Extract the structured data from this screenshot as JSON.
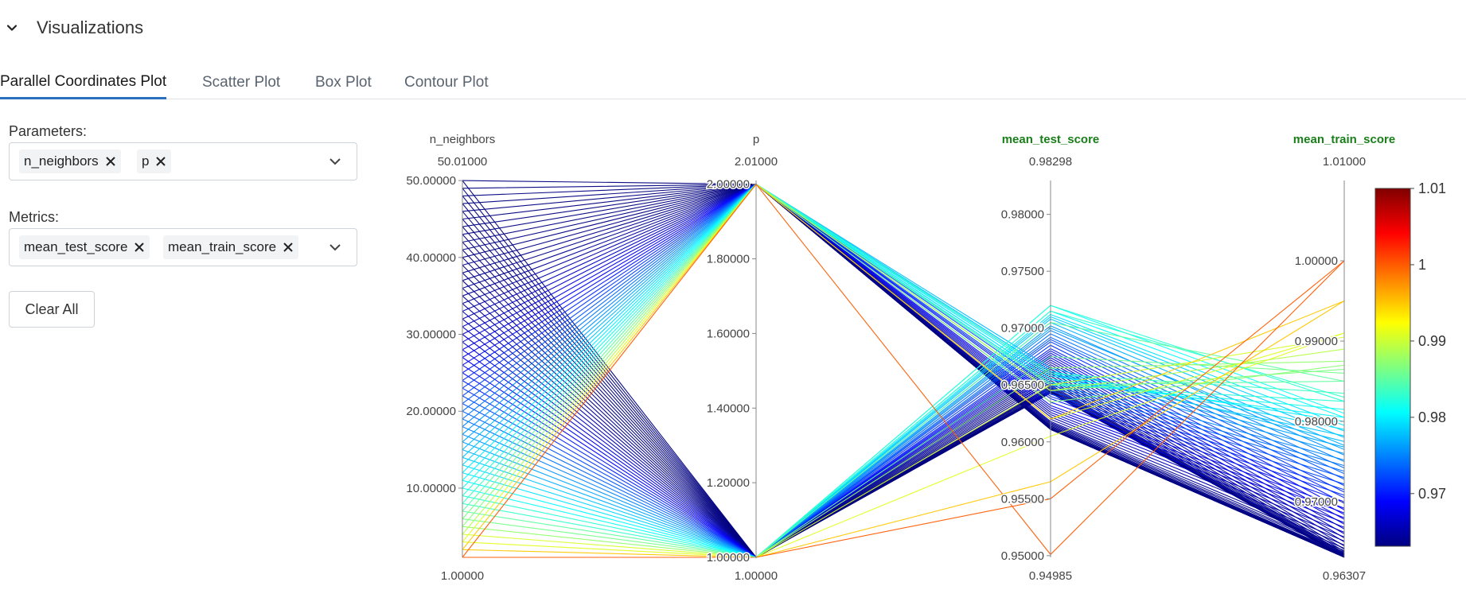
{
  "section": {
    "title": "Visualizations"
  },
  "tabs": [
    {
      "label": "Parallel Coordinates Plot",
      "active": true
    },
    {
      "label": "Scatter Plot",
      "active": false
    },
    {
      "label": "Box Plot",
      "active": false
    },
    {
      "label": "Contour Plot",
      "active": false
    }
  ],
  "parameters": {
    "label": "Parameters:",
    "chips": [
      "n_neighbors",
      "p"
    ]
  },
  "metrics": {
    "label": "Metrics:",
    "chips": [
      "mean_test_score",
      "mean_train_score"
    ]
  },
  "clear_all_label": "Clear All",
  "colors": {
    "accent": "#2a6fbd",
    "metric_label": "#1a7f1a"
  },
  "chart_data": {
    "type": "parallel_coordinates",
    "axes": [
      {
        "name": "n_neighbors",
        "min": 1.0,
        "max": 50.01,
        "min_label": "1.00000",
        "max_label": "50.01000",
        "ticks": [
          "10.00000",
          "20.00000",
          "30.00000",
          "40.00000",
          "50.00000"
        ],
        "tick_values": [
          10,
          20,
          30,
          40,
          50
        ],
        "is_metric": false
      },
      {
        "name": "p",
        "min": 1.0,
        "max": 2.01,
        "min_label": "1.00000",
        "max_label": "2.01000",
        "ticks": [
          "1.00000",
          "1.20000",
          "1.40000",
          "1.60000",
          "1.80000",
          "2.00000"
        ],
        "tick_values": [
          1.0,
          1.2,
          1.4,
          1.6,
          1.8,
          2.0
        ],
        "is_metric": false
      },
      {
        "name": "mean_test_score",
        "min": 0.94985,
        "max": 0.98298,
        "min_label": "0.94985",
        "max_label": "0.98298",
        "ticks": [
          "0.95000",
          "0.95500",
          "0.96000",
          "0.96500",
          "0.97000",
          "0.97500",
          "0.98000"
        ],
        "tick_values": [
          0.95,
          0.955,
          0.96,
          0.965,
          0.97,
          0.975,
          0.98
        ],
        "is_metric": true
      },
      {
        "name": "mean_train_score",
        "min": 0.96307,
        "max": 1.01,
        "min_label": "0.96307",
        "max_label": "1.01000",
        "ticks": [
          "0.97000",
          "0.98000",
          "0.99000",
          "1.00000"
        ],
        "tick_values": [
          0.97,
          0.98,
          0.99,
          1.0
        ],
        "is_metric": true
      }
    ],
    "colorbar": {
      "ticks": [
        "0.97",
        "0.98",
        "0.99",
        "1",
        "1.01"
      ],
      "tick_values": [
        0.97,
        0.98,
        0.99,
        1.0,
        1.01
      ],
      "min": 0.9631,
      "max": 1.01,
      "colorscale": "jet"
    },
    "lines": [
      [
        1,
        2,
        0.9501,
        1.0
      ],
      [
        1,
        1,
        0.955,
        1.0
      ],
      [
        2,
        2,
        0.962,
        0.995
      ],
      [
        2,
        1,
        0.9565,
        0.995
      ],
      [
        3,
        2,
        0.962,
        0.991
      ],
      [
        3,
        1,
        0.9605,
        0.991
      ],
      [
        4,
        2,
        0.9645,
        0.989
      ],
      [
        4,
        1,
        0.965,
        0.9905
      ],
      [
        5,
        2,
        0.9635,
        0.987
      ],
      [
        5,
        1,
        0.9665,
        0.9875
      ],
      [
        6,
        2,
        0.9645,
        0.9865
      ],
      [
        6,
        1,
        0.9675,
        0.986
      ],
      [
        7,
        2,
        0.965,
        0.985
      ],
      [
        7,
        1,
        0.9705,
        0.985
      ],
      [
        8,
        2,
        0.966,
        0.9835
      ],
      [
        8,
        1,
        0.9715,
        0.983
      ],
      [
        9,
        2,
        0.965,
        0.9825
      ],
      [
        9,
        1,
        0.972,
        0.9825
      ],
      [
        10,
        2,
        0.9652,
        0.9815
      ],
      [
        10,
        1,
        0.972,
        0.981
      ],
      [
        11,
        2,
        0.9655,
        0.9805
      ],
      [
        11,
        1,
        0.9715,
        0.9805
      ],
      [
        12,
        2,
        0.9658,
        0.98
      ],
      [
        12,
        1,
        0.9712,
        0.9795
      ],
      [
        13,
        2,
        0.9662,
        0.979
      ],
      [
        13,
        1,
        0.971,
        0.9788
      ],
      [
        14,
        2,
        0.966,
        0.9782
      ],
      [
        14,
        1,
        0.9708,
        0.978
      ],
      [
        15,
        2,
        0.9665,
        0.9775
      ],
      [
        15,
        1,
        0.9705,
        0.977
      ],
      [
        16,
        2,
        0.9662,
        0.9768
      ],
      [
        16,
        1,
        0.97,
        0.9765
      ],
      [
        17,
        2,
        0.966,
        0.976
      ],
      [
        17,
        1,
        0.9702,
        0.9758
      ],
      [
        18,
        2,
        0.9655,
        0.9752
      ],
      [
        18,
        1,
        0.9698,
        0.975
      ],
      [
        19,
        2,
        0.9652,
        0.9745
      ],
      [
        19,
        1,
        0.9695,
        0.9742
      ],
      [
        20,
        2,
        0.965,
        0.9738
      ],
      [
        20,
        1,
        0.9692,
        0.9735
      ],
      [
        21,
        2,
        0.9648,
        0.973
      ],
      [
        21,
        1,
        0.969,
        0.9728
      ],
      [
        22,
        2,
        0.9645,
        0.9722
      ],
      [
        22,
        1,
        0.9688,
        0.972
      ],
      [
        23,
        2,
        0.9642,
        0.9715
      ],
      [
        23,
        1,
        0.9685,
        0.9712
      ],
      [
        24,
        2,
        0.964,
        0.9708
      ],
      [
        24,
        1,
        0.9682,
        0.9705
      ],
      [
        25,
        2,
        0.9638,
        0.97
      ],
      [
        25,
        1,
        0.968,
        0.9698
      ],
      [
        26,
        2,
        0.9635,
        0.9692
      ],
      [
        26,
        1,
        0.9678,
        0.969
      ],
      [
        27,
        2,
        0.9632,
        0.9686
      ],
      [
        27,
        1,
        0.9676,
        0.9684
      ],
      [
        28,
        2,
        0.963,
        0.968
      ],
      [
        28,
        1,
        0.9674,
        0.9678
      ],
      [
        29,
        2,
        0.9628,
        0.9674
      ],
      [
        29,
        1,
        0.9672,
        0.9672
      ],
      [
        30,
        2,
        0.9626,
        0.9668
      ],
      [
        30,
        1,
        0.967,
        0.9666
      ],
      [
        31,
        2,
        0.9624,
        0.9662
      ],
      [
        31,
        1,
        0.9668,
        0.966
      ],
      [
        32,
        2,
        0.9622,
        0.9656
      ],
      [
        32,
        1,
        0.9666,
        0.9655
      ],
      [
        33,
        2,
        0.962,
        0.9651
      ],
      [
        33,
        1,
        0.9664,
        0.965
      ],
      [
        34,
        2,
        0.9618,
        0.9646
      ],
      [
        34,
        1,
        0.9662,
        0.9645
      ],
      [
        35,
        2,
        0.9617,
        0.9642
      ],
      [
        35,
        1,
        0.966,
        0.9641
      ],
      [
        36,
        2,
        0.9616,
        0.9639
      ],
      [
        36,
        1,
        0.9658,
        0.9638
      ],
      [
        37,
        2,
        0.9615,
        0.9637
      ],
      [
        37,
        1,
        0.9656,
        0.9636
      ],
      [
        38,
        2,
        0.9614,
        0.9635
      ],
      [
        38,
        1,
        0.9654,
        0.9635
      ],
      [
        39,
        2,
        0.9614,
        0.9634
      ],
      [
        39,
        1,
        0.9652,
        0.9634
      ],
      [
        40,
        2,
        0.9613,
        0.9633
      ],
      [
        40,
        1,
        0.965,
        0.9633
      ],
      [
        41,
        2,
        0.9613,
        0.9633
      ],
      [
        41,
        1,
        0.9649,
        0.9632
      ],
      [
        42,
        2,
        0.9612,
        0.9632
      ],
      [
        42,
        1,
        0.9648,
        0.9632
      ],
      [
        43,
        2,
        0.9612,
        0.9632
      ],
      [
        43,
        1,
        0.9647,
        0.9631
      ],
      [
        44,
        2,
        0.9612,
        0.9631
      ],
      [
        44,
        1,
        0.9646,
        0.9631
      ],
      [
        45,
        2,
        0.9611,
        0.9631
      ],
      [
        45,
        1,
        0.9645,
        0.9631
      ],
      [
        46,
        2,
        0.9611,
        0.9631
      ],
      [
        46,
        1,
        0.9645,
        0.9631
      ],
      [
        47,
        2,
        0.9611,
        0.9631
      ],
      [
        47,
        1,
        0.9644,
        0.9631
      ],
      [
        48,
        2,
        0.9611,
        0.9631
      ],
      [
        48,
        1,
        0.9644,
        0.9631
      ],
      [
        49,
        2,
        0.9611,
        0.9631
      ],
      [
        49,
        1,
        0.9643,
        0.9631
      ],
      [
        50,
        2,
        0.9611,
        0.9631
      ],
      [
        50,
        1,
        0.9643,
        0.9631
      ]
    ]
  }
}
